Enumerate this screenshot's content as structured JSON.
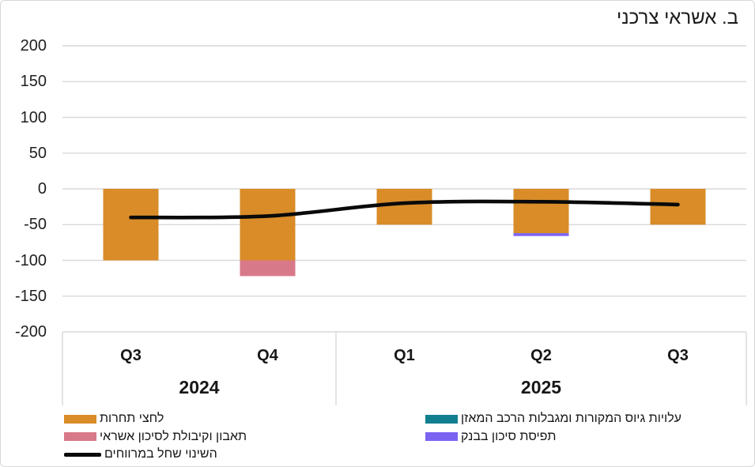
{
  "chart_data": {
    "type": "bar",
    "subtype": "stacked-bars-with-smoothed-line-overlay",
    "title": "ב. אשראי צרכני",
    "categories": [
      "Q3",
      "Q4",
      "Q1",
      "Q2",
      "Q3"
    ],
    "year_groups": [
      {
        "label": "2024",
        "count": 2
      },
      {
        "label": "2025",
        "count": 3
      }
    ],
    "series": [
      {
        "name": "לחצי תחרות",
        "type": "bar",
        "color": "#D98C28",
        "values": [
          -100,
          -100,
          -50,
          -62,
          -50
        ]
      },
      {
        "name": "עלויות גיוס המקורות ומגבלות הרכב המאזן",
        "type": "bar",
        "color": "#117F8F",
        "values": [
          0,
          0,
          0,
          0,
          0
        ]
      },
      {
        "name": "תאבון וקיבולת לסיכון אשראי",
        "type": "bar",
        "color": "#D8798A",
        "values": [
          0,
          -22,
          0,
          0,
          0
        ]
      },
      {
        "name": "תפיסת סיכון בבנק",
        "type": "bar",
        "color": "#7B63F2",
        "values": [
          0,
          0,
          0,
          -4,
          0
        ]
      },
      {
        "name": "השינוי שחל במרווחים",
        "type": "line",
        "color": "#0a0a0a",
        "values": [
          -40,
          -38,
          -20,
          -18,
          -22
        ]
      }
    ],
    "ylim": [
      -200,
      200
    ],
    "ytick_step": 50,
    "ytick_labels": [
      "200",
      "150",
      "100",
      "50",
      "0",
      "-50",
      "-100",
      "-150",
      "-200"
    ],
    "grid": true,
    "legend_position": "bottom",
    "legend_columns": {
      "left": [
        "לחצי תחרות",
        "תאבון וקיבולת לסיכון אשראי",
        "השינוי שחל במרווחים"
      ],
      "right": [
        "עלויות גיוס המקורות ומגבלות הרכב המאזן",
        "תפיסת סיכון בבנק"
      ]
    },
    "colors": {
      "grid": "#d9d9d9",
      "axis_divider": "#d9d9d9",
      "frame_border": "#d7d7d7",
      "text": "#1a1a1a"
    }
  }
}
